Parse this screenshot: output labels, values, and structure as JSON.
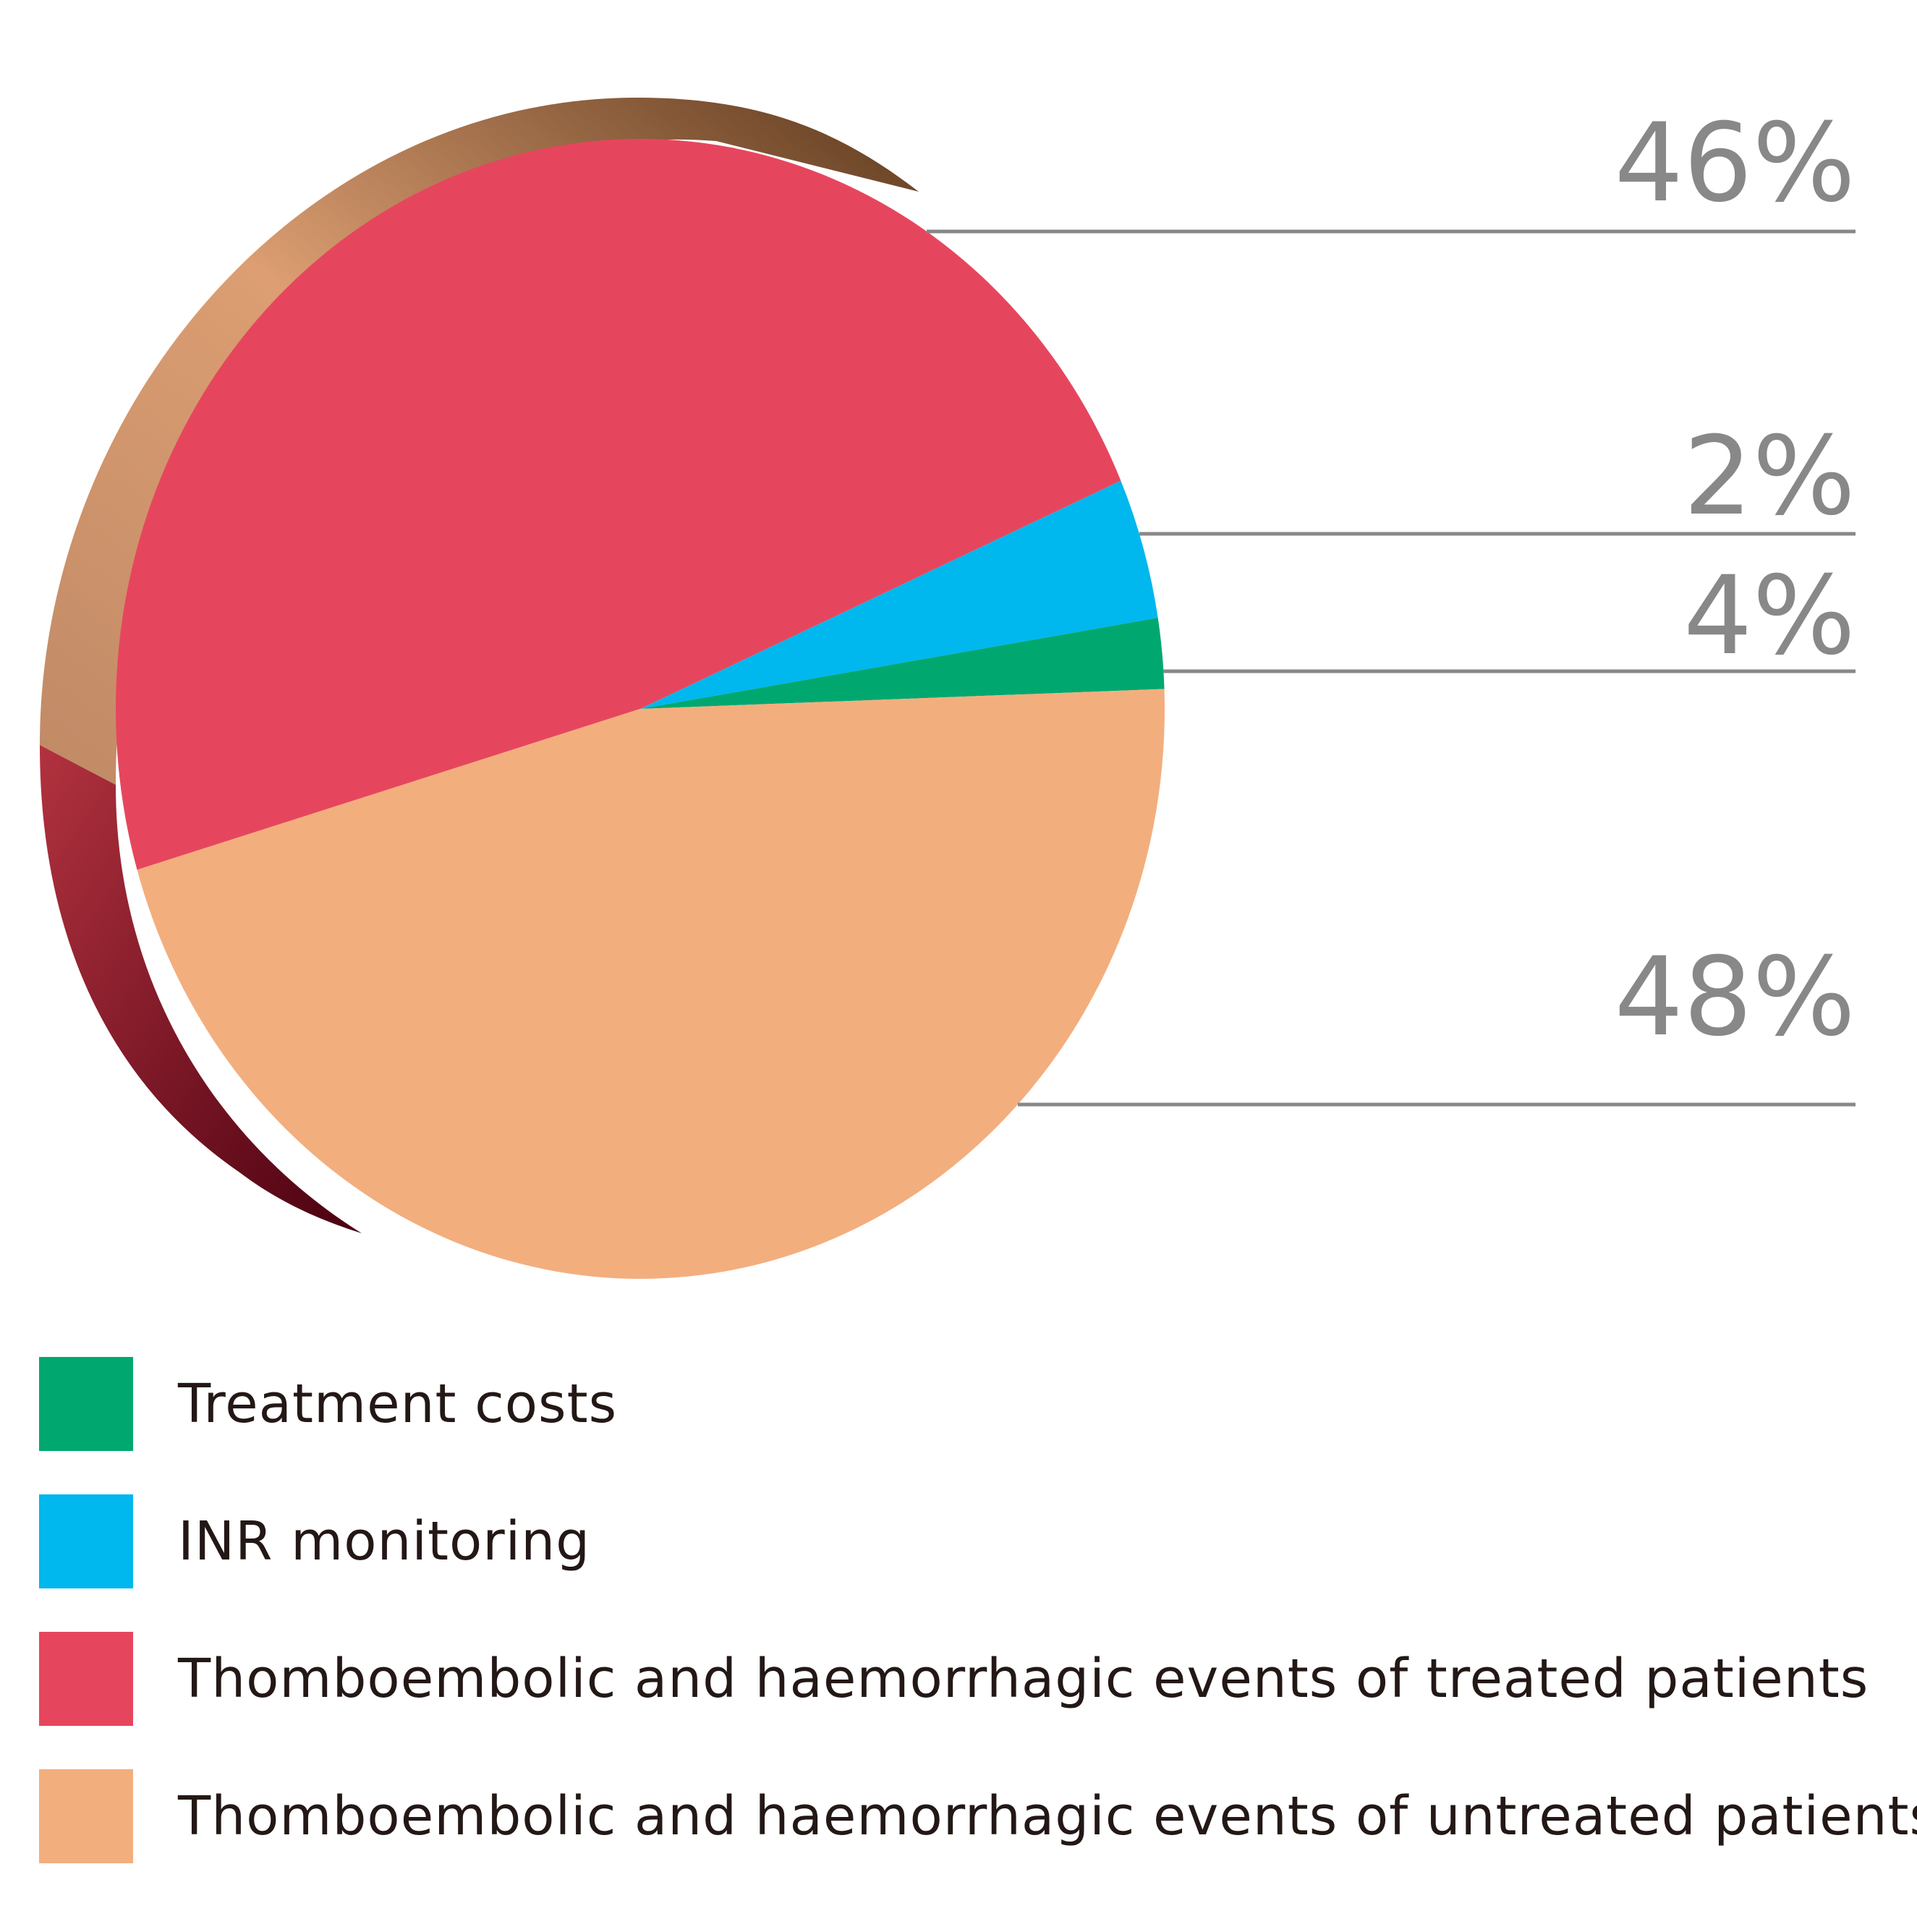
{
  "chart_data": {
    "type": "pie",
    "title": "",
    "slices": [
      {
        "label": "Treatment costs",
        "value": 2,
        "display": "2%",
        "color": "#00a870"
      },
      {
        "label": "INR monitoring",
        "value": 4,
        "display": "4%",
        "color": "#00b7ee"
      },
      {
        "label": "Thomboembolic and haemorrhagic events of treated patients",
        "value": 48,
        "display": "48%",
        "color": "#e6465d"
      },
      {
        "label": "Thomboembolic and haemorrhagic events of untreated patients",
        "value": 46,
        "display": "46%",
        "color": "#f3ae7e"
      }
    ],
    "legend_position": "bottom-left",
    "style": "3d-pie-with-leader-lines"
  },
  "colors": {
    "label_text": "#888888",
    "leader_line": "#888888",
    "legend_text": "#231815"
  }
}
